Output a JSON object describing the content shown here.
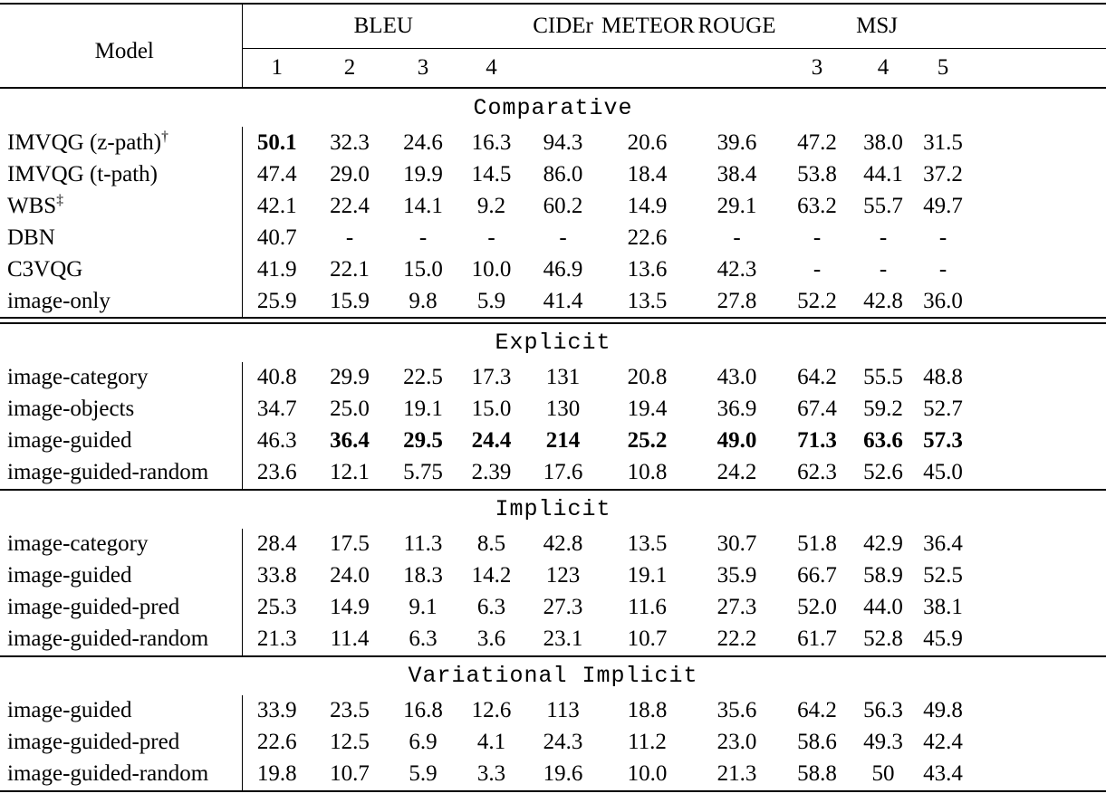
{
  "table": {
    "header": {
      "model_label": "Model",
      "groups": [
        {
          "label": "BLEU",
          "subcols": [
            "1",
            "2",
            "3",
            "4"
          ]
        },
        {
          "label": "CIDEr",
          "subcols": [
            ""
          ]
        },
        {
          "label": "METEOR",
          "subcols": [
            ""
          ]
        },
        {
          "label": "ROUGE",
          "subcols": [
            ""
          ]
        },
        {
          "label": "MSJ",
          "subcols": [
            "3",
            "4",
            "5"
          ]
        }
      ]
    },
    "sections": [
      {
        "title": "Comparative",
        "rule_after": "double",
        "rows": [
          {
            "model": "IMVQG (z-path)",
            "model_sup": "†",
            "bold": [
              0
            ],
            "values": [
              "50.1",
              "32.3",
              "24.6",
              "16.3",
              "94.3",
              "20.6",
              "39.6",
              "47.2",
              "38.0",
              "31.5"
            ]
          },
          {
            "model": "IMVQG (t-path)",
            "values": [
              "47.4",
              "29.0",
              "19.9",
              "14.5",
              "86.0",
              "18.4",
              "38.4",
              "53.8",
              "44.1",
              "37.2"
            ]
          },
          {
            "model": "WBS",
            "model_sup": "‡",
            "values": [
              "42.1",
              "22.4",
              "14.1",
              "9.2",
              "60.2",
              "14.9",
              "29.1",
              "63.2",
              "55.7",
              "49.7"
            ]
          },
          {
            "model": "DBN",
            "values": [
              "40.7",
              "-",
              "-",
              "-",
              "-",
              "22.6",
              "-",
              "-",
              "-",
              "-"
            ]
          },
          {
            "model": "C3VQG",
            "values": [
              "41.9",
              "22.1",
              "15.0",
              "10.0",
              "46.9",
              "13.6",
              "42.3",
              "-",
              "-",
              "-"
            ]
          },
          {
            "model": "image-only",
            "values": [
              "25.9",
              "15.9",
              "9.8",
              "5.9",
              "41.4",
              "13.5",
              "27.8",
              "52.2",
              "42.8",
              "36.0"
            ]
          }
        ]
      },
      {
        "title": "Explicit",
        "rule_after": "single",
        "rows": [
          {
            "model": "image-category",
            "values": [
              "40.8",
              "29.9",
              "22.5",
              "17.3",
              "131",
              "20.8",
              "43.0",
              "64.2",
              "55.5",
              "48.8"
            ]
          },
          {
            "model": "image-objects",
            "values": [
              "34.7",
              "25.0",
              "19.1",
              "15.0",
              "130",
              "19.4",
              "36.9",
              "67.4",
              "59.2",
              "52.7"
            ]
          },
          {
            "model": "image-guided",
            "bold": [
              1,
              2,
              3,
              4,
              5,
              6,
              7,
              8,
              9
            ],
            "values": [
              "46.3",
              "36.4",
              "29.5",
              "24.4",
              "214",
              "25.2",
              "49.0",
              "71.3",
              "63.6",
              "57.3"
            ]
          },
          {
            "model": "image-guided-random",
            "values": [
              "23.6",
              "12.1",
              "5.75",
              "2.39",
              "17.6",
              "10.8",
              "24.2",
              "62.3",
              "52.6",
              "45.0"
            ]
          }
        ]
      },
      {
        "title": "Implicit",
        "rule_after": "single",
        "rows": [
          {
            "model": "image-category",
            "values": [
              "28.4",
              "17.5",
              "11.3",
              "8.5",
              "42.8",
              "13.5",
              "30.7",
              "51.8",
              "42.9",
              "36.4"
            ]
          },
          {
            "model": "image-guided",
            "values": [
              "33.8",
              "24.0",
              "18.3",
              "14.2",
              "123",
              "19.1",
              "35.9",
              "66.7",
              "58.9",
              "52.5"
            ]
          },
          {
            "model": "image-guided-pred",
            "values": [
              "25.3",
              "14.9",
              "9.1",
              "6.3",
              "27.3",
              "11.6",
              "27.3",
              "52.0",
              "44.0",
              "38.1"
            ]
          },
          {
            "model": "image-guided-random",
            "values": [
              "21.3",
              "11.4",
              "6.3",
              "3.6",
              "23.1",
              "10.7",
              "22.2",
              "61.7",
              "52.8",
              "45.9"
            ]
          }
        ]
      },
      {
        "title": "Variational Implicit",
        "rule_after": "none",
        "rows": [
          {
            "model": "image-guided",
            "values": [
              "33.9",
              "23.5",
              "16.8",
              "12.6",
              "113",
              "18.8",
              "35.6",
              "64.2",
              "56.3",
              "49.8"
            ]
          },
          {
            "model": "image-guided-pred",
            "values": [
              "22.6",
              "12.5",
              "6.9",
              "4.1",
              "24.3",
              "11.2",
              "23.0",
              "58.6",
              "49.3",
              "42.4"
            ]
          },
          {
            "model": "image-guided-random",
            "values": [
              "19.8",
              "10.7",
              "5.9",
              "3.3",
              "19.6",
              "10.0",
              "21.3",
              "58.8",
              "50",
              "43.4"
            ]
          }
        ]
      }
    ]
  }
}
